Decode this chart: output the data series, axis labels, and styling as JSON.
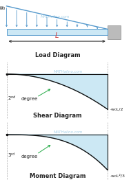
{
  "bg_color": "#ffffff",
  "beam_color": "#cce8f5",
  "beam_edge": "#5599cc",
  "load_arrow_color": "#5599cc",
  "curve_color": "#111111",
  "fill_color": "#cce8f4",
  "arrow_color": "#333333",
  "label_color": "#222222",
  "annotation_color": "#22aa44",
  "watermark_color": "#6ab0d8",
  "wall_color": "#bbbbbb",
  "wall_edge": "#888888",
  "dashed_color": "#aaaaaa",
  "L_color": "#cc3333",
  "w0_label": "w₀",
  "L_label": "L",
  "shear_label": "-w₀L/2",
  "moment_label": "-w₀L²/3",
  "load_title": "Load Diagram",
  "shear_title": "Shear Diagram",
  "moment_title": "Moment Diagram",
  "watermark": "MATHalino.com"
}
